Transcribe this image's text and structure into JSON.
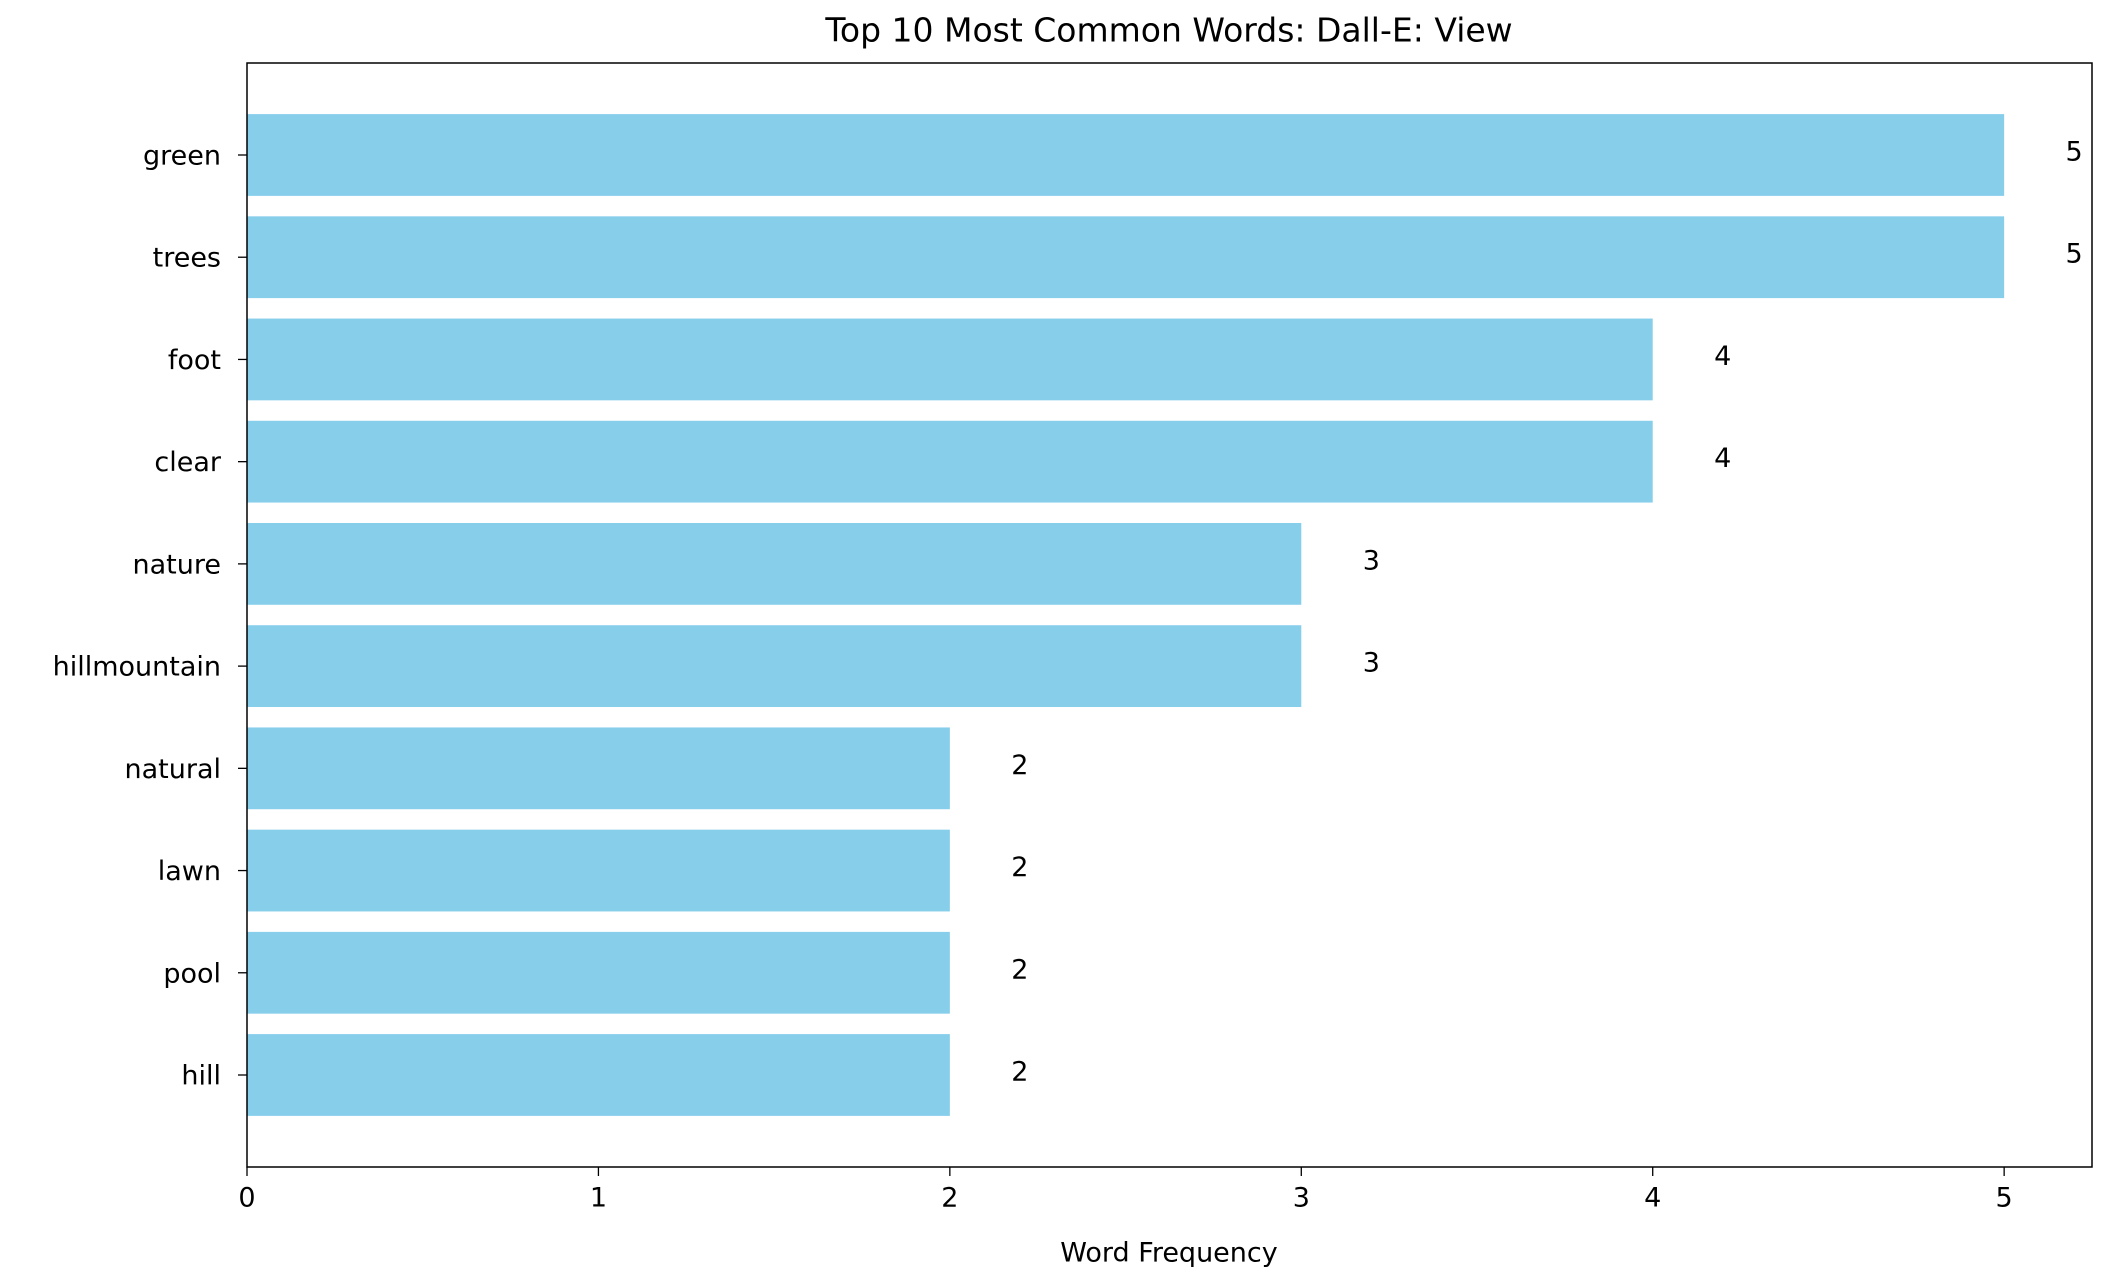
{
  "chart_data": {
    "type": "barh",
    "title": "Top 10 Most Common Words: Dall-E: View",
    "xlabel": "Word Frequency",
    "categories": [
      "green",
      "trees",
      "foot",
      "clear",
      "nature",
      "hillmountain",
      "natural",
      "lawn",
      "pool",
      "hill"
    ],
    "values": [
      5,
      5,
      4,
      4,
      3,
      3,
      2,
      2,
      2,
      2
    ],
    "color": "#87ceeb",
    "xlim": [
      0,
      5.25
    ],
    "xticks": [
      0,
      1,
      2,
      3,
      4,
      5
    ],
    "grid": false
  }
}
